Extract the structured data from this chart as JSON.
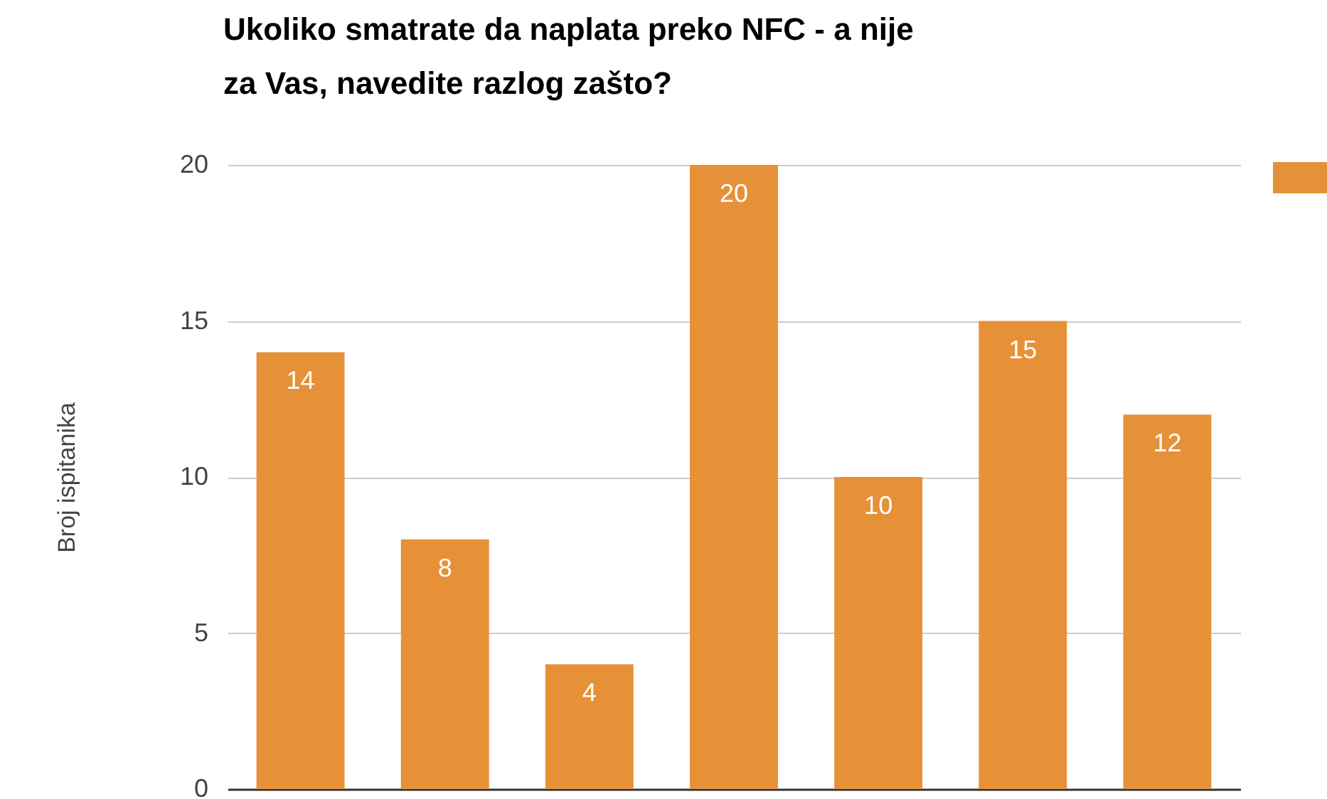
{
  "chart_data": {
    "type": "bar",
    "title": "Ukoliko smatrate da naplata preko NFC - a nije za Vas, navedite razlog zašto?",
    "ylabel": "Broj ispitanika",
    "categories": [
      null,
      null,
      null,
      null,
      null,
      null,
      null
    ],
    "series": [
      {
        "color": "#e69138",
        "values": [
          14,
          8,
          4,
          20,
          10,
          15,
          12
        ]
      }
    ],
    "ylim": [
      0,
      20
    ],
    "yticks": [
      0,
      5,
      10,
      15,
      20
    ],
    "grid": "y",
    "data_labels": true
  }
}
